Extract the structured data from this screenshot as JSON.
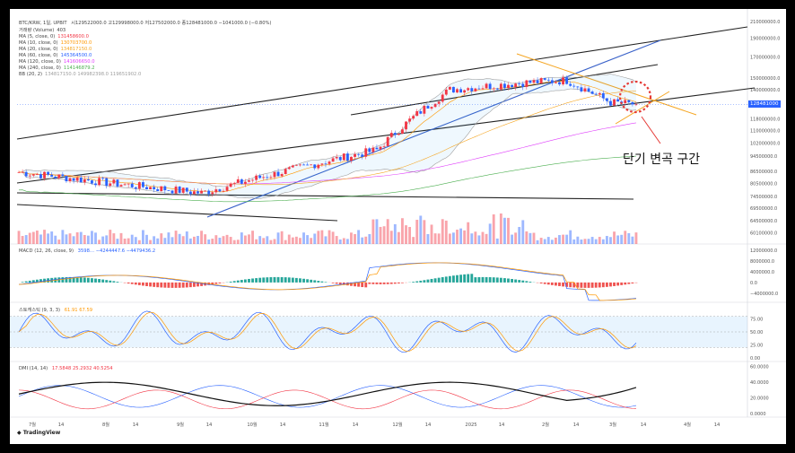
{
  "header": {
    "symbol": "BTC/KRW, 1일, UPBIT",
    "ohlc": "시129522000.0  고129998000.0  저127502000.0  종128481000.0  −1041000.0 (−0.80%)"
  },
  "legend": [
    {
      "name": "거래량 (Volume)",
      "value": "403",
      "color": "#444444"
    },
    {
      "name": "MA (5, close, 0)",
      "value": "131458600.0",
      "color": "#f23645"
    },
    {
      "name": "MA (10, close, 0)",
      "value": "130703700.0",
      "color": "#ff9800"
    },
    {
      "name": "MA (20, close, 0)",
      "value": "134817150.0",
      "color": "#f5a623"
    },
    {
      "name": "MA (60, close, 0)",
      "value": "145364500.0",
      "color": "#2962ff"
    },
    {
      "name": "MA (120, close, 0)",
      "value": "141606650.0",
      "color": "#e040fb"
    },
    {
      "name": "MA (240, close, 0)",
      "value": "114146879.2",
      "color": "#4caf50"
    },
    {
      "name": "BB (20, 2)",
      "value": "134817150.0  149982398.0  119651902.0",
      "color": "#9e9e9e"
    }
  ],
  "macd_label": {
    "name": "MACD (12, 26, close, 9)",
    "value": "3598…  −4244447.6  −4479436.2"
  },
  "stoch_label": {
    "name": "스토캐스틱 (9, 3, 3)",
    "value": "61.91  67.59"
  },
  "dmi_label": {
    "name": "DMI (14, 14)",
    "value": "17.5848  25.2932  40.5254"
  },
  "price_tag": "128481000",
  "annotation": "단기 변곡 구간",
  "brand": "TradingView",
  "colors": {
    "up": "#f23645",
    "down": "#2962ff",
    "accent": "#2962ff"
  },
  "chart_data": {
    "type": "candlestick",
    "price_axis": [
      "210000000.0",
      "190000000.0",
      "170000000.0",
      "150000000.0",
      "140000000.0",
      "130000000.0",
      "118000000.0",
      "110000000.0",
      "102000000.0",
      "94500000.0",
      "86500000.0",
      "80500000.0",
      "74500000.0",
      "69500000.0",
      "64500000.0",
      "60100000.0"
    ],
    "macd_axis": [
      "12000000.0",
      "8000000.0",
      "4000000.0",
      "0.0",
      "−4000000.0"
    ],
    "stoch_axis": [
      "75.00",
      "50.00",
      "25.00",
      "0.00"
    ],
    "dmi_axis": [
      "60.0000",
      "40.0000",
      "20.0000",
      "0.0000"
    ],
    "x_labels": [
      "7월",
      "14",
      "8월",
      "14",
      "9월",
      "14",
      "10월",
      "14",
      "11월",
      "14",
      "12월",
      "14",
      "2025",
      "14",
      "2월",
      "14",
      "3월",
      "14",
      "4월",
      "14"
    ],
    "close_milestones": [
      {
        "label": "7월",
        "close": 86000000
      },
      {
        "label": "8월",
        "close": 80000000
      },
      {
        "label": "9월",
        "close": 76000000
      },
      {
        "label": "10월",
        "close": 86000000
      },
      {
        "label": "11월",
        "close": 98000000
      },
      {
        "label": "12월",
        "close": 140000000
      },
      {
        "label": "2025",
        "close": 146000000
      },
      {
        "label": "2월",
        "close": 148000000
      },
      {
        "label": "3월",
        "close": 130000000
      },
      {
        "label": "last",
        "close": 128481000
      }
    ]
  }
}
